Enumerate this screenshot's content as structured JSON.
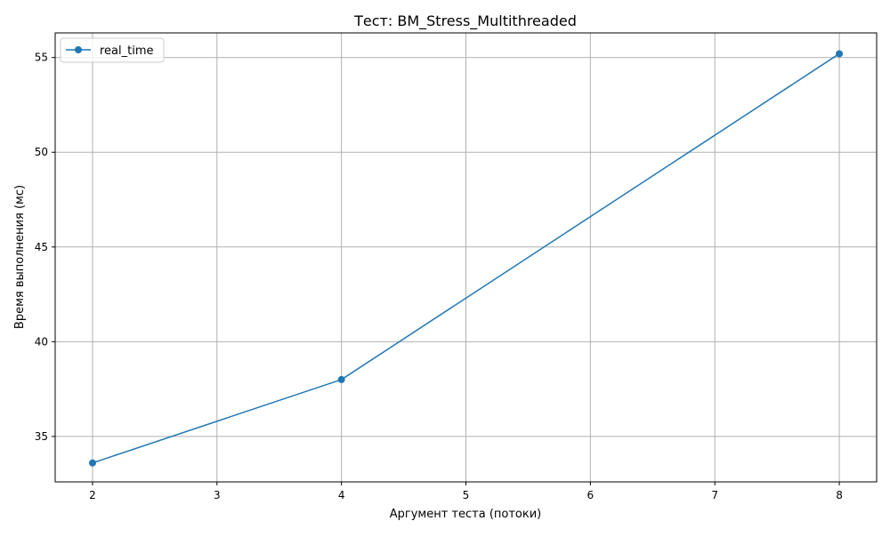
{
  "chart_data": {
    "type": "line",
    "title": "Тест: BM_Stress_Multithreaded",
    "xlabel": "Аргумент теста (потоки)",
    "ylabel": "Время выполнения (мс)",
    "xlim": [
      1.7,
      8.3
    ],
    "ylim": [
      32.6,
      56.3
    ],
    "x_ticks": [
      2,
      3,
      4,
      5,
      6,
      7,
      8
    ],
    "y_ticks": [
      35,
      40,
      45,
      50,
      55
    ],
    "grid": true,
    "legend_position": "top-left",
    "series": [
      {
        "name": "real_time",
        "color": "#1f77b4",
        "marker": "circle",
        "x": [
          2,
          4,
          8
        ],
        "y": [
          33.6,
          38.0,
          55.2
        ]
      }
    ]
  }
}
